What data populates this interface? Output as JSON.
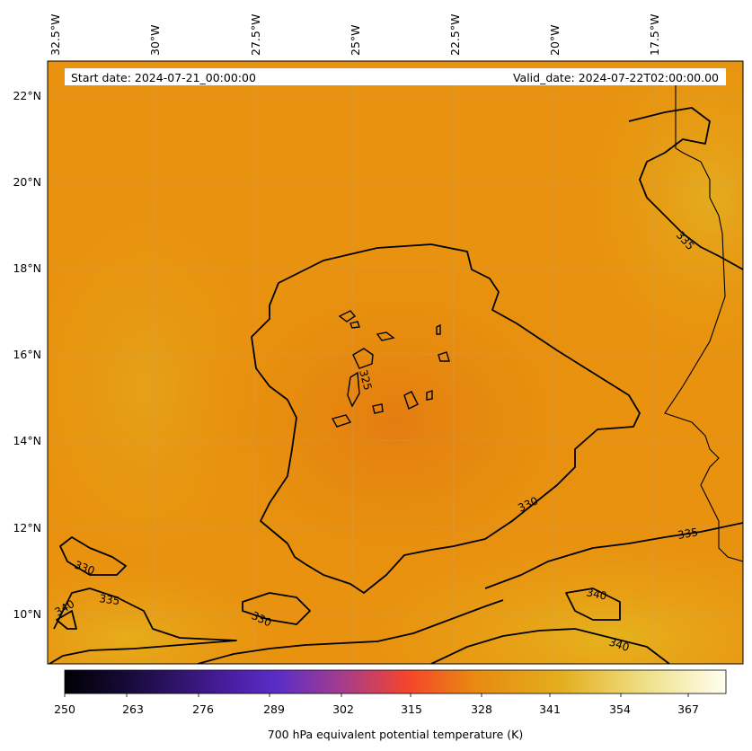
{
  "header": {
    "start_date": "Start date: 2024-07-21_00:00:00",
    "valid_date": "Valid_date: 2024-07-22T02:00:00.00"
  },
  "axes": {
    "x_ticks": [
      "32.5°W",
      "30°W",
      "27.5°W",
      "25°W",
      "22.5°W",
      "20°W",
      "17.5°W"
    ],
    "y_ticks": [
      "22°N",
      "20°N",
      "18°N",
      "16°N",
      "14°N",
      "12°N",
      "10°N"
    ]
  },
  "contour_labels": [
    {
      "text": "335"
    },
    {
      "text": "325"
    },
    {
      "text": "330"
    },
    {
      "text": "335"
    },
    {
      "text": "330"
    },
    {
      "text": "335"
    },
    {
      "text": "340"
    },
    {
      "text": "340"
    },
    {
      "text": "330"
    },
    {
      "text": "340"
    }
  ],
  "colorbar": {
    "label": "700 hPa equivalent potential temperature (K)",
    "ticks": [
      "250",
      "263",
      "276",
      "289",
      "302",
      "315",
      "328",
      "341",
      "354",
      "367"
    ],
    "colors": [
      "#000004",
      "#1b0c41",
      "#4a0c6b",
      "#5a32c8",
      "#d33b6b",
      "#f5452a",
      "#e88a10",
      "#e6b020",
      "#efe288",
      "#fffff2"
    ]
  },
  "map": {
    "field_colors": {
      "low": "#e57f0c",
      "mid": "#e8900e",
      "high": "#e2ab1c"
    },
    "coastline_color": "#000000",
    "gridline_color": "#b0a090"
  }
}
